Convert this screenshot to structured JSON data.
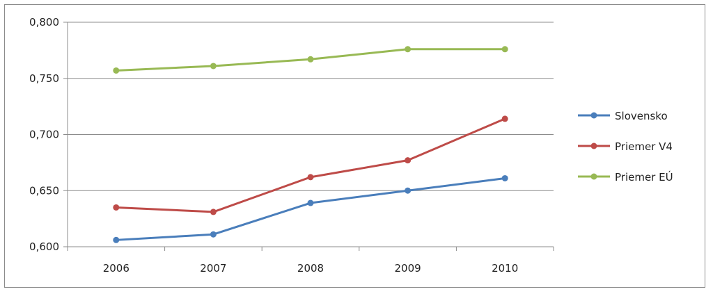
{
  "chart_data": {
    "type": "line",
    "categories": [
      "2006",
      "2007",
      "2008",
      "2009",
      "2010"
    ],
    "y_ticks": [
      "0,600",
      "0,650",
      "0,700",
      "0,750",
      "0,800"
    ],
    "ylim": [
      0.6,
      0.8
    ],
    "grid": "horizontal",
    "legend_position": "right",
    "series": [
      {
        "name": "Slovensko",
        "color": "#4a7ebb",
        "values": [
          0.606,
          0.611,
          0.639,
          0.65,
          0.661
        ]
      },
      {
        "name": "Priemer V4",
        "color": "#be4b48",
        "values": [
          0.635,
          0.631,
          0.662,
          0.677,
          0.714
        ]
      },
      {
        "name": "Priemer EÚ",
        "color": "#98b954",
        "values": [
          0.757,
          0.761,
          0.767,
          0.776,
          0.776
        ]
      }
    ]
  }
}
